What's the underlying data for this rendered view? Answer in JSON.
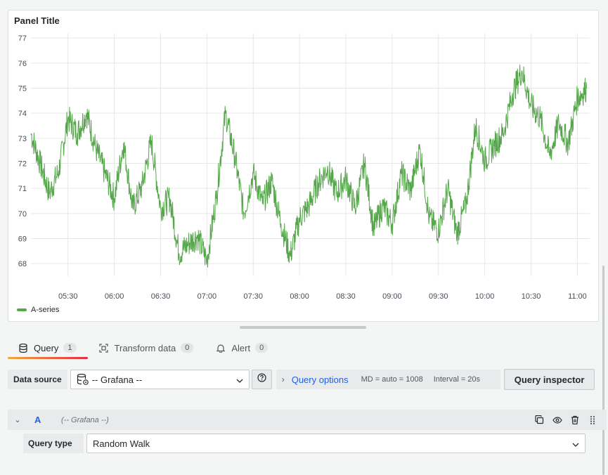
{
  "panel": {
    "title": "Panel Title"
  },
  "chart_data": {
    "type": "line",
    "title": "Panel Title",
    "xlabel": "",
    "ylabel": "",
    "ylim": [
      67.5,
      77.2
    ],
    "yticks": [
      "68",
      "69",
      "70",
      "71",
      "72",
      "73",
      "74",
      "75",
      "76",
      "77"
    ],
    "xticks": [
      "05:30",
      "06:00",
      "06:30",
      "07:00",
      "07:30",
      "08:00",
      "08:30",
      "09:00",
      "09:30",
      "10:00",
      "10:30",
      "11:00"
    ],
    "xrange": [
      "05:06",
      "11:08"
    ],
    "grid": true,
    "legend": "bottom-left",
    "series": [
      {
        "name": "A-series",
        "color": "#56a64b",
        "x": [
          "05:06",
          "05:12",
          "05:18",
          "05:24",
          "05:30",
          "05:36",
          "05:42",
          "05:48",
          "05:54",
          "06:00",
          "06:06",
          "06:12",
          "06:18",
          "06:24",
          "06:30",
          "06:36",
          "06:42",
          "06:48",
          "06:54",
          "07:00",
          "07:06",
          "07:12",
          "07:18",
          "07:24",
          "07:30",
          "07:36",
          "07:42",
          "07:48",
          "07:54",
          "08:00",
          "08:06",
          "08:12",
          "08:18",
          "08:24",
          "08:30",
          "08:36",
          "08:42",
          "08:48",
          "08:54",
          "09:00",
          "09:06",
          "09:12",
          "09:18",
          "09:24",
          "09:30",
          "09:36",
          "09:42",
          "09:48",
          "09:54",
          "10:00",
          "10:06",
          "10:12",
          "10:18",
          "10:24",
          "10:30",
          "10:36",
          "10:42",
          "10:48",
          "10:54",
          "11:00",
          "11:06"
        ],
        "y": [
          73.2,
          72.0,
          70.8,
          71.7,
          73.8,
          73.2,
          74.0,
          72.6,
          71.6,
          70.6,
          72.8,
          70.2,
          71.1,
          72.9,
          70.2,
          70.6,
          68.4,
          68.8,
          69.1,
          68.1,
          70.6,
          74.0,
          72.3,
          70.0,
          71.6,
          70.4,
          71.3,
          69.6,
          68.3,
          69.8,
          70.3,
          71.2,
          71.8,
          70.8,
          71.4,
          70.2,
          72.0,
          69.4,
          70.3,
          69.6,
          71.6,
          70.9,
          72.6,
          69.8,
          69.3,
          71.0,
          69.2,
          70.4,
          73.5,
          72.1,
          72.7,
          73.2,
          74.8,
          75.7,
          74.3,
          73.8,
          72.3,
          73.6,
          72.8,
          74.6,
          75.0
        ]
      }
    ]
  },
  "tabs": [
    {
      "label": "Query",
      "count": "1",
      "icon": "database-icon"
    },
    {
      "label": "Transform data",
      "count": "0",
      "icon": "transform-icon"
    },
    {
      "label": "Alert",
      "count": "0",
      "icon": "bell-icon"
    }
  ],
  "datasource": {
    "label": "Data source",
    "selected": "-- Grafana --"
  },
  "query_options": {
    "label": "Query options",
    "md": "MD = auto = 1008",
    "interval": "Interval = 20s"
  },
  "inspector_label": "Query inspector",
  "query_row": {
    "ref_id": "A",
    "datasource_name": "(-- Grafana --)",
    "query_type_label": "Query type",
    "query_type_value": "Random Walk"
  },
  "colors": {
    "accent": "#1f62e0",
    "series": "#56a64b",
    "tab_underline_start": "#f2a83b",
    "tab_underline_end": "#e02f44"
  }
}
